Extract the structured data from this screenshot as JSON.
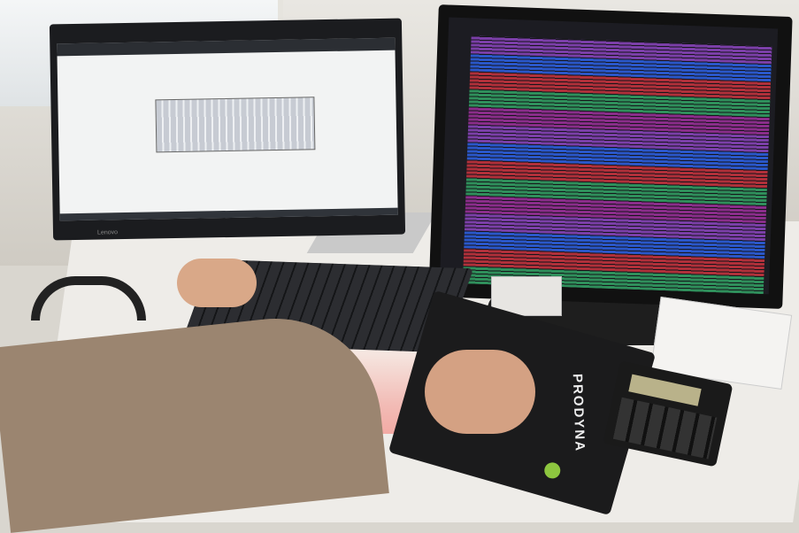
{
  "scene": {
    "monitor_left_brand": "Lenovo",
    "mousepad_logo": "PRODYNA",
    "colors": {
      "logo_green": "#8dc63f",
      "sheet_bands": [
        "#7b3fa8",
        "#2a57c9",
        "#b0303a",
        "#2f8f5b",
        "#8a2d8a"
      ]
    }
  }
}
